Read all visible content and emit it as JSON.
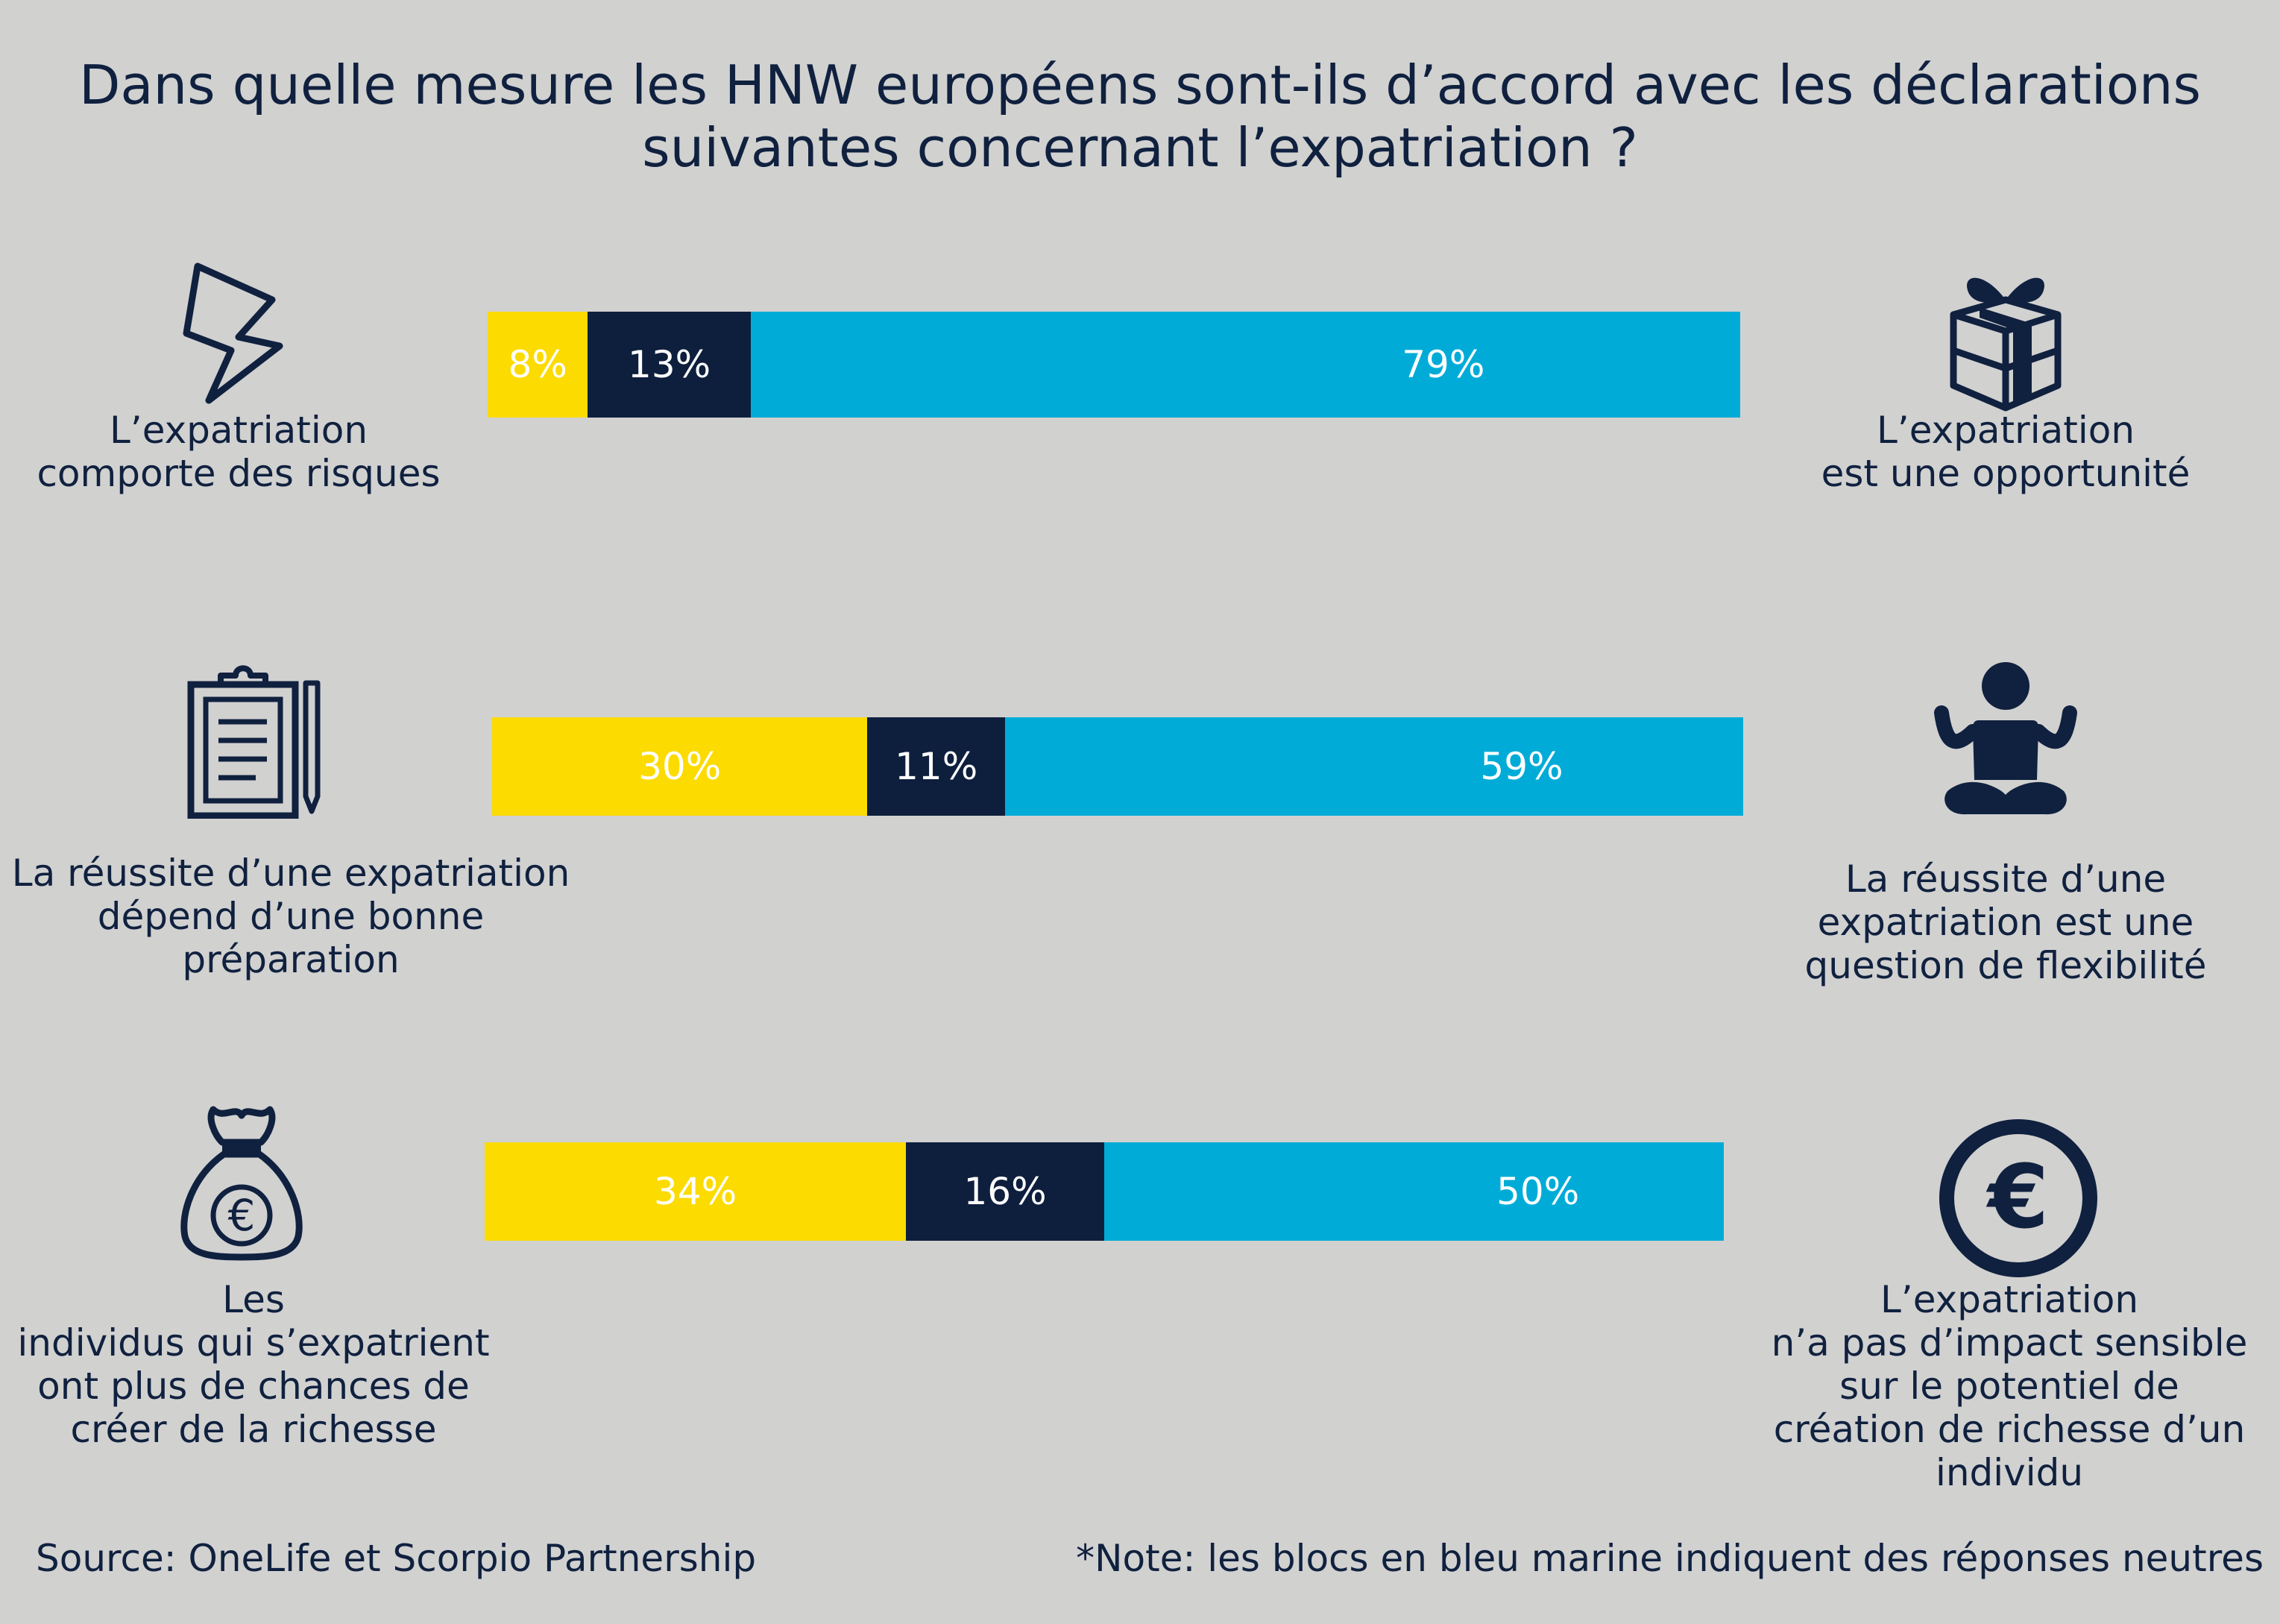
{
  "title": {
    "line1": "Dans quelle mesure les HNW européens sont-ils d’accord avec les déclarations",
    "line2": "suivantes concernant l’expatriation ?"
  },
  "colors": {
    "left": "#fcdb00",
    "neutral": "#0e1f3d",
    "right": "#00acd7",
    "ink": "#10213f"
  },
  "chart_data": {
    "type": "bar",
    "orientation": "horizontal",
    "stacked": true,
    "unit": "%",
    "rows": [
      {
        "left_statement": [
          "L’expatriation",
          "comporte des risques"
        ],
        "right_statement": [
          "L’expatriation",
          "est une opportunité"
        ],
        "left_icon": "lightning-icon",
        "right_icon": "gift-icon",
        "values": [
          8,
          13,
          79
        ],
        "labels": [
          "8%",
          "13%",
          "79%"
        ]
      },
      {
        "left_statement": [
          "La réussite d’une expatriation",
          "dépend d’une bonne",
          "préparation"
        ],
        "right_statement": [
          "La réussite d’une",
          "expatriation est une",
          "question de flexibilité"
        ],
        "left_icon": "clipboard-icon",
        "right_icon": "meditation-icon",
        "values": [
          30,
          11,
          59
        ],
        "labels": [
          "30%",
          "11%",
          "59%"
        ]
      },
      {
        "left_statement": [
          "Les",
          "individus qui s’expatrient",
          "ont plus de chances de",
          "créer de la richesse"
        ],
        "right_statement": [
          "L’expatriation",
          "n’a pas d’impact sensible",
          "sur le potentiel de",
          "création de richesse d’un",
          "individu"
        ],
        "left_icon": "money-bag-icon",
        "right_icon": "euro-coin-icon",
        "values": [
          34,
          16,
          50
        ],
        "labels": [
          "34%",
          "16%",
          "50%"
        ]
      }
    ]
  },
  "footer": {
    "source": "Source: OneLife et Scorpio Partnership",
    "note": "*Note: les blocs en bleu marine indiquent des réponses neutres"
  }
}
